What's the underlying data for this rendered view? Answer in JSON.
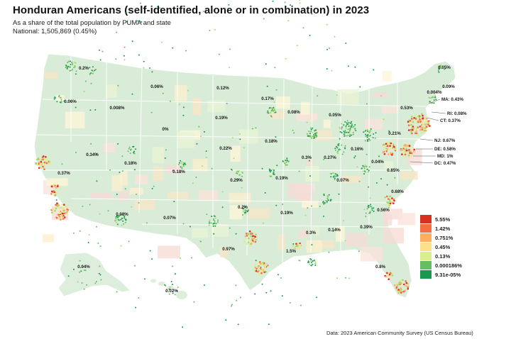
{
  "title": "Honduran Americans (self-identified, alone or in combination) in 2023",
  "subtitle": "As a share of the total population by PUMA and state",
  "national": "National: 1,505,869 (0.45%)",
  "source": "Data: 2023 American Community Survey (US Census Bureau)",
  "colors": {
    "land": "#d8ecd8",
    "state_border": "#ffffff",
    "background": "#ffffff"
  },
  "legend": {
    "position": "bottom-right",
    "items": [
      {
        "label": "5.55%",
        "color": "#d7301f"
      },
      {
        "label": "1.42%",
        "color": "#f46d43"
      },
      {
        "label": "0.751%",
        "color": "#fdae61"
      },
      {
        "label": "0.45%",
        "color": "#fee08b"
      },
      {
        "label": "0.13%",
        "color": "#d9ef8b"
      },
      {
        "label": "0.000186%",
        "color": "#66bd63"
      },
      {
        "label": "9.31e-05%",
        "color": "#1a9850"
      }
    ]
  },
  "state_labels": [
    {
      "text": "0.2%"
    },
    {
      "text": "0.06%"
    },
    {
      "text": "0.12%"
    },
    {
      "text": "0.06%"
    },
    {
      "text": "0.008%"
    },
    {
      "text": "0.17%"
    },
    {
      "text": "0.08%"
    },
    {
      "text": "0.05%"
    },
    {
      "text": "0.19%"
    },
    {
      "text": "0%"
    },
    {
      "text": "0.34%"
    },
    {
      "text": "0.18%"
    },
    {
      "text": "0.18%"
    },
    {
      "text": "0.22%"
    },
    {
      "text": "0.18%"
    },
    {
      "text": "0.3%"
    },
    {
      "text": "0.27%"
    },
    {
      "text": "0.16%"
    },
    {
      "text": "0.37%"
    },
    {
      "text": "0.29%"
    },
    {
      "text": "0.19%"
    },
    {
      "text": "0.07%"
    },
    {
      "text": "0.2%"
    },
    {
      "text": "0.19%"
    },
    {
      "text": "0.08%"
    },
    {
      "text": "0.07%"
    },
    {
      "text": "0.3%"
    },
    {
      "text": "0.14%"
    },
    {
      "text": "0.39%"
    },
    {
      "text": "0.97%"
    },
    {
      "text": "1.5%"
    },
    {
      "text": "0.04%"
    },
    {
      "text": "0.02%"
    },
    {
      "text": "0.05%"
    },
    {
      "text": "0.09%"
    },
    {
      "text": "0.004%"
    },
    {
      "text": "0.53%"
    },
    {
      "text": "0.21%"
    },
    {
      "text": "0.04%"
    },
    {
      "text": "0.85%"
    },
    {
      "text": "0.68%"
    },
    {
      "text": "0.56%"
    },
    {
      "text": "0.8%"
    }
  ],
  "callouts": [
    {
      "text": "MA: 0.43%"
    },
    {
      "text": "RI: 0.08%"
    },
    {
      "text": "CT: 0.37%"
    },
    {
      "text": "NJ: 0.67%"
    },
    {
      "text": "DE: 0.58%"
    },
    {
      "text": "MD: 1%"
    },
    {
      "text": "DC: 0.47%"
    }
  ]
}
